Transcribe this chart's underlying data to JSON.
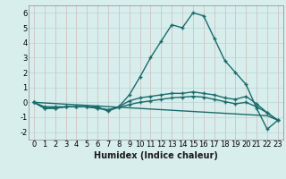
{
  "xlabel": "Humidex (Indice chaleur)",
  "ylabel": "",
  "xlim": [
    -0.5,
    23.5
  ],
  "ylim": [
    -2.5,
    6.5
  ],
  "yticks": [
    -2,
    -1,
    0,
    1,
    2,
    3,
    4,
    5,
    6
  ],
  "xticks": [
    0,
    1,
    2,
    3,
    4,
    5,
    6,
    7,
    8,
    9,
    10,
    11,
    12,
    13,
    14,
    15,
    16,
    17,
    18,
    19,
    20,
    21,
    22,
    23
  ],
  "bg_color": "#d8eeed",
  "grid_color": "#b8d5d5",
  "grid_rcolor": "#d0b8b8",
  "line_color": "#1a6b6b",
  "line1_x": [
    0,
    1,
    2,
    3,
    4,
    5,
    6,
    7,
    8,
    9,
    10,
    11,
    12,
    13,
    14,
    15,
    16,
    17,
    18,
    19,
    20,
    21,
    22,
    23
  ],
  "line1_y": [
    0.0,
    -0.4,
    -0.4,
    -0.3,
    -0.3,
    -0.3,
    -0.3,
    -0.6,
    -0.3,
    0.5,
    1.7,
    3.0,
    4.1,
    5.2,
    5.0,
    6.0,
    5.8,
    4.3,
    2.8,
    2.0,
    1.2,
    -0.4,
    -1.8,
    -1.2
  ],
  "line2_x": [
    0,
    1,
    2,
    3,
    4,
    5,
    6,
    7,
    8,
    9,
    10,
    11,
    12,
    13,
    14,
    15,
    16,
    17,
    18,
    19,
    20,
    21,
    22,
    23
  ],
  "line2_y": [
    0.0,
    -0.4,
    -0.4,
    -0.3,
    -0.3,
    -0.3,
    -0.4,
    -0.5,
    -0.3,
    0.1,
    0.3,
    0.4,
    0.5,
    0.6,
    0.6,
    0.7,
    0.6,
    0.5,
    0.3,
    0.2,
    0.4,
    -0.1,
    -0.7,
    -1.2
  ],
  "line3_x": [
    0,
    1,
    2,
    3,
    4,
    5,
    6,
    7,
    8,
    9,
    10,
    11,
    12,
    13,
    14,
    15,
    16,
    17,
    18,
    19,
    20,
    21,
    22,
    23
  ],
  "line3_y": [
    0.0,
    -0.3,
    -0.3,
    -0.3,
    -0.3,
    -0.3,
    -0.4,
    -0.5,
    -0.35,
    -0.15,
    0.0,
    0.1,
    0.2,
    0.3,
    0.35,
    0.4,
    0.35,
    0.2,
    0.05,
    -0.1,
    0.0,
    -0.3,
    -0.7,
    -1.2
  ],
  "line4_x": [
    0,
    22,
    23
  ],
  "line4_y": [
    0.0,
    -0.9,
    -1.2
  ],
  "tick_fontsize": 6,
  "xlabel_fontsize": 7
}
